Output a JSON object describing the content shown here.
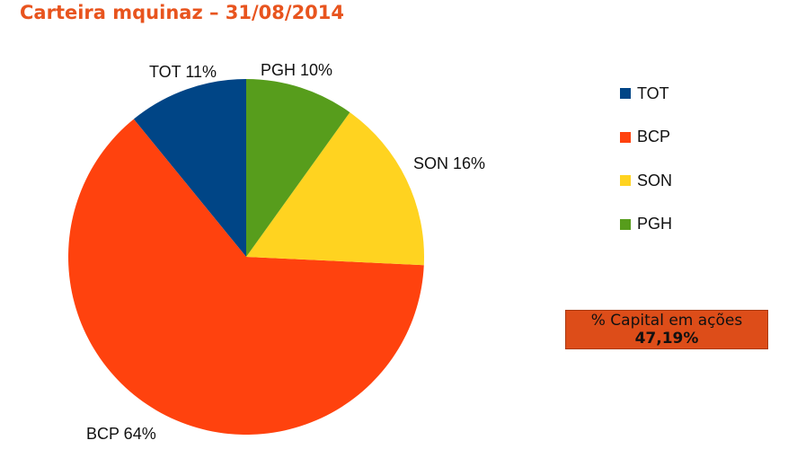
{
  "title": "Carteira mquinaz – 31/08/2014",
  "chart_data": {
    "type": "pie",
    "slices": [
      {
        "name": "TOT",
        "value": 11,
        "label": "TOT 11%",
        "color": "#004586"
      },
      {
        "name": "BCP",
        "value": 64,
        "label": "BCP 64%",
        "color": "#ff420e"
      },
      {
        "name": "SON",
        "value": 16,
        "label": "SON 16%",
        "color": "#ffd320"
      },
      {
        "name": "PGH",
        "value": 10,
        "label": "PGH 10%",
        "color": "#579d1c"
      }
    ],
    "legend_position": "right"
  },
  "legend": {
    "items": [
      {
        "label": "TOT",
        "color": "#004586"
      },
      {
        "label": "BCP",
        "color": "#ff420e"
      },
      {
        "label": "SON",
        "color": "#ffd320"
      },
      {
        "label": "PGH",
        "color": "#579d1c"
      }
    ]
  },
  "capital": {
    "label": "% Capital em ações",
    "value": "47,19%"
  }
}
